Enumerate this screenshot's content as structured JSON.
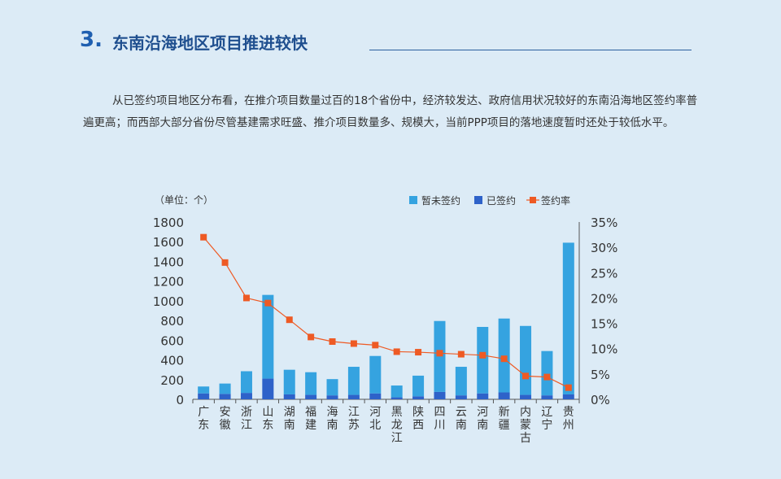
{
  "header": {
    "number": "3.",
    "title": "东南沿海地区项目推进较快"
  },
  "intro": {
    "text": "从已签约项目地区分布看，在推介项目数量过百的18个省份中，经济较发达、政府信用状况较好的东南沿海地区签约率普遍更高；而西部大部分省份尽管基建需求旺盛、推介项目数量多、规模大，当前PPP项目的落地速度暂时还处于较低水平。"
  },
  "chart_data": {
    "type": "bar",
    "stacked": true,
    "unit_label": "（单位：个）",
    "categories": [
      "广东",
      "安徽",
      "浙江",
      "山东",
      "湖南",
      "福建",
      "海南",
      "江苏",
      "河北",
      "黑龙江",
      "陕西",
      "四川",
      "云南",
      "河南",
      "新疆",
      "内蒙古",
      "辽宁",
      "贵州"
    ],
    "series": [
      {
        "name": "已签约",
        "type": "bar",
        "axis": "left",
        "color": "#2e62c9",
        "values": [
          60,
          55,
          65,
          210,
          50,
          45,
          40,
          45,
          60,
          20,
          30,
          75,
          40,
          60,
          70,
          45,
          40,
          50
        ]
      },
      {
        "name": "暂未签约",
        "type": "bar",
        "axis": "left",
        "color": "#35a3e0",
        "values": [
          70,
          105,
          220,
          850,
          250,
          230,
          165,
          285,
          380,
          120,
          210,
          720,
          290,
          675,
          750,
          700,
          450,
          1540
        ]
      },
      {
        "name": "签约率",
        "type": "line",
        "axis": "right",
        "color": "#ee5a24",
        "values": [
          0.32,
          0.27,
          0.2,
          0.19,
          0.157,
          0.123,
          0.114,
          0.11,
          0.107,
          0.094,
          0.093,
          0.091,
          0.089,
          0.087,
          0.08,
          0.046,
          0.044,
          0.023
        ]
      }
    ],
    "legend_order": [
      "暂未签约",
      "已签约",
      "签约率"
    ],
    "legend_position": "top-right",
    "y_left": {
      "min": 0,
      "max": 1800,
      "ticks": [
        "0",
        "200",
        "400",
        "600",
        "800",
        "1000",
        "1200",
        "1400",
        "1600",
        "1800"
      ]
    },
    "y_right": {
      "min": 0,
      "max": 0.35,
      "ticks": [
        "0%",
        "5%",
        "10%",
        "15%",
        "20%",
        "25%",
        "30%",
        "35%"
      ]
    },
    "grid": false
  },
  "colors": {
    "background": "#dcebf6",
    "title_blue": "#1f4f8f",
    "bar_unsigned": "#35a3e0",
    "bar_signed": "#2e62c9",
    "line_rate": "#ee5a24"
  }
}
